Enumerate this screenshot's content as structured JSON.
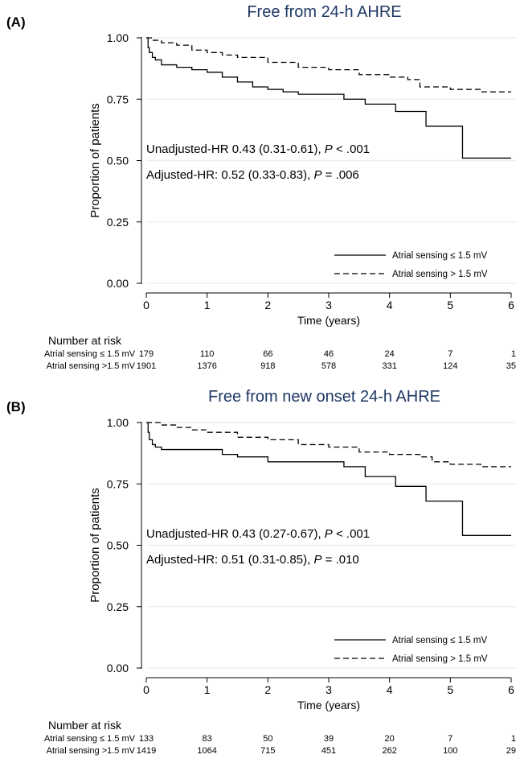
{
  "panels": [
    {
      "label": "(A)",
      "title": "Free from 24-h AHRE",
      "ylabel": "Proportion of patients",
      "xlabel": "Time (years)",
      "xticks": [
        "0",
        "1",
        "2",
        "3",
        "4",
        "5",
        "6"
      ],
      "yticks": [
        "0.00",
        "0.25",
        "0.50",
        "0.75",
        "1.00"
      ],
      "annotations": [
        {
          "pre": "Unadjusted-HR 0.43 (0.31-0.61), ",
          "italic": "P",
          "post": " < .001"
        },
        {
          "pre": "Adjusted-HR: 0.52 (0.33-0.83), ",
          "italic": "P",
          "post": " = .006"
        }
      ],
      "legend": [
        "Atrial sensing ≤ 1.5 mV",
        "Atrial sensing > 1.5 mV"
      ],
      "risk_header": "Number at risk",
      "risk_rows": [
        {
          "label": "Atrial sensing ≤ 1.5 mV",
          "values": [
            "179",
            "110",
            "66",
            "46",
            "24",
            "7",
            "1"
          ]
        },
        {
          "label": "Atrial sensing >1.5 mV",
          "values": [
            "1901",
            "1376",
            "918",
            "578",
            "331",
            "124",
            "35"
          ]
        }
      ]
    },
    {
      "label": "(B)",
      "title": "Free from new onset 24-h AHRE",
      "ylabel": "Proportion of patients",
      "xlabel": "Time (years)",
      "xticks": [
        "0",
        "1",
        "2",
        "3",
        "4",
        "5",
        "6"
      ],
      "yticks": [
        "0.00",
        "0.25",
        "0.50",
        "0.75",
        "1.00"
      ],
      "annotations": [
        {
          "pre": "Unadjusted-HR 0.43 (0.27-0.67), ",
          "italic": "P",
          "post": " < .001"
        },
        {
          "pre": "Adjusted-HR: 0.51 (0.31-0.85), ",
          "italic": "P",
          "post": " = .010"
        }
      ],
      "legend": [
        "Atrial sensing ≤ 1.5 mV",
        "Atrial sensing > 1.5 mV"
      ],
      "risk_header": "Number at risk",
      "risk_rows": [
        {
          "label": "Atrial sensing ≤ 1.5 mV",
          "values": [
            "133",
            "83",
            "50",
            "39",
            "20",
            "7",
            "1"
          ]
        },
        {
          "label": "Atrial sensing >1.5 mV",
          "values": [
            "1419",
            "1064",
            "715",
            "451",
            "262",
            "100",
            "29"
          ]
        }
      ]
    }
  ],
  "chart_data": [
    {
      "type": "line",
      "title": "Free from 24-h AHRE",
      "xlabel": "Time (years)",
      "ylabel": "Proportion of patients",
      "xlim": [
        0,
        6
      ],
      "ylim": [
        0,
        1
      ],
      "grid": true,
      "legend_position": "bottom-right",
      "series": [
        {
          "name": "Atrial sensing ≤ 1.5 mV",
          "style": "solid",
          "x": [
            0,
            0.03,
            0.05,
            0.1,
            0.15,
            0.25,
            0.5,
            0.75,
            1.0,
            1.25,
            1.5,
            1.75,
            2.0,
            2.25,
            2.5,
            3.0,
            3.25,
            3.6,
            4.1,
            4.6,
            5.2,
            6.0
          ],
          "y": [
            1.0,
            0.96,
            0.94,
            0.92,
            0.91,
            0.89,
            0.88,
            0.87,
            0.86,
            0.84,
            0.82,
            0.8,
            0.79,
            0.78,
            0.77,
            0.77,
            0.75,
            0.73,
            0.7,
            0.64,
            0.51,
            0.51
          ]
        },
        {
          "name": "Atrial sensing > 1.5 mV",
          "style": "dashed",
          "x": [
            0,
            0.1,
            0.25,
            0.5,
            0.75,
            1.0,
            1.25,
            1.5,
            2.0,
            2.5,
            3.0,
            3.5,
            4.0,
            4.3,
            4.5,
            5.0,
            5.5,
            6.0
          ],
          "y": [
            1.0,
            0.99,
            0.98,
            0.97,
            0.95,
            0.94,
            0.93,
            0.92,
            0.9,
            0.88,
            0.87,
            0.85,
            0.84,
            0.83,
            0.8,
            0.79,
            0.78,
            0.78
          ]
        }
      ]
    },
    {
      "type": "line",
      "title": "Free from new onset 24-h AHRE",
      "xlabel": "Time (years)",
      "ylabel": "Proportion of patients",
      "xlim": [
        0,
        6
      ],
      "ylim": [
        0,
        1
      ],
      "grid": true,
      "legend_position": "bottom-right",
      "series": [
        {
          "name": "Atrial sensing ≤ 1.5 mV",
          "style": "solid",
          "x": [
            0,
            0.03,
            0.05,
            0.1,
            0.15,
            0.25,
            0.5,
            1.0,
            1.25,
            1.5,
            2.0,
            2.5,
            3.0,
            3.25,
            3.6,
            4.1,
            4.6,
            5.2,
            6.0
          ],
          "y": [
            1.0,
            0.96,
            0.93,
            0.91,
            0.9,
            0.89,
            0.89,
            0.89,
            0.87,
            0.86,
            0.84,
            0.84,
            0.84,
            0.82,
            0.78,
            0.74,
            0.68,
            0.54,
            0.54
          ]
        },
        {
          "name": "Atrial sensing > 1.5 mV",
          "style": "dashed",
          "x": [
            0,
            0.25,
            0.5,
            0.75,
            1.0,
            1.5,
            2.0,
            2.5,
            3.0,
            3.5,
            4.0,
            4.5,
            4.7,
            5.0,
            5.5,
            6.0
          ],
          "y": [
            1.0,
            0.99,
            0.98,
            0.97,
            0.96,
            0.94,
            0.93,
            0.91,
            0.9,
            0.88,
            0.87,
            0.86,
            0.84,
            0.83,
            0.82,
            0.82
          ]
        }
      ]
    }
  ]
}
